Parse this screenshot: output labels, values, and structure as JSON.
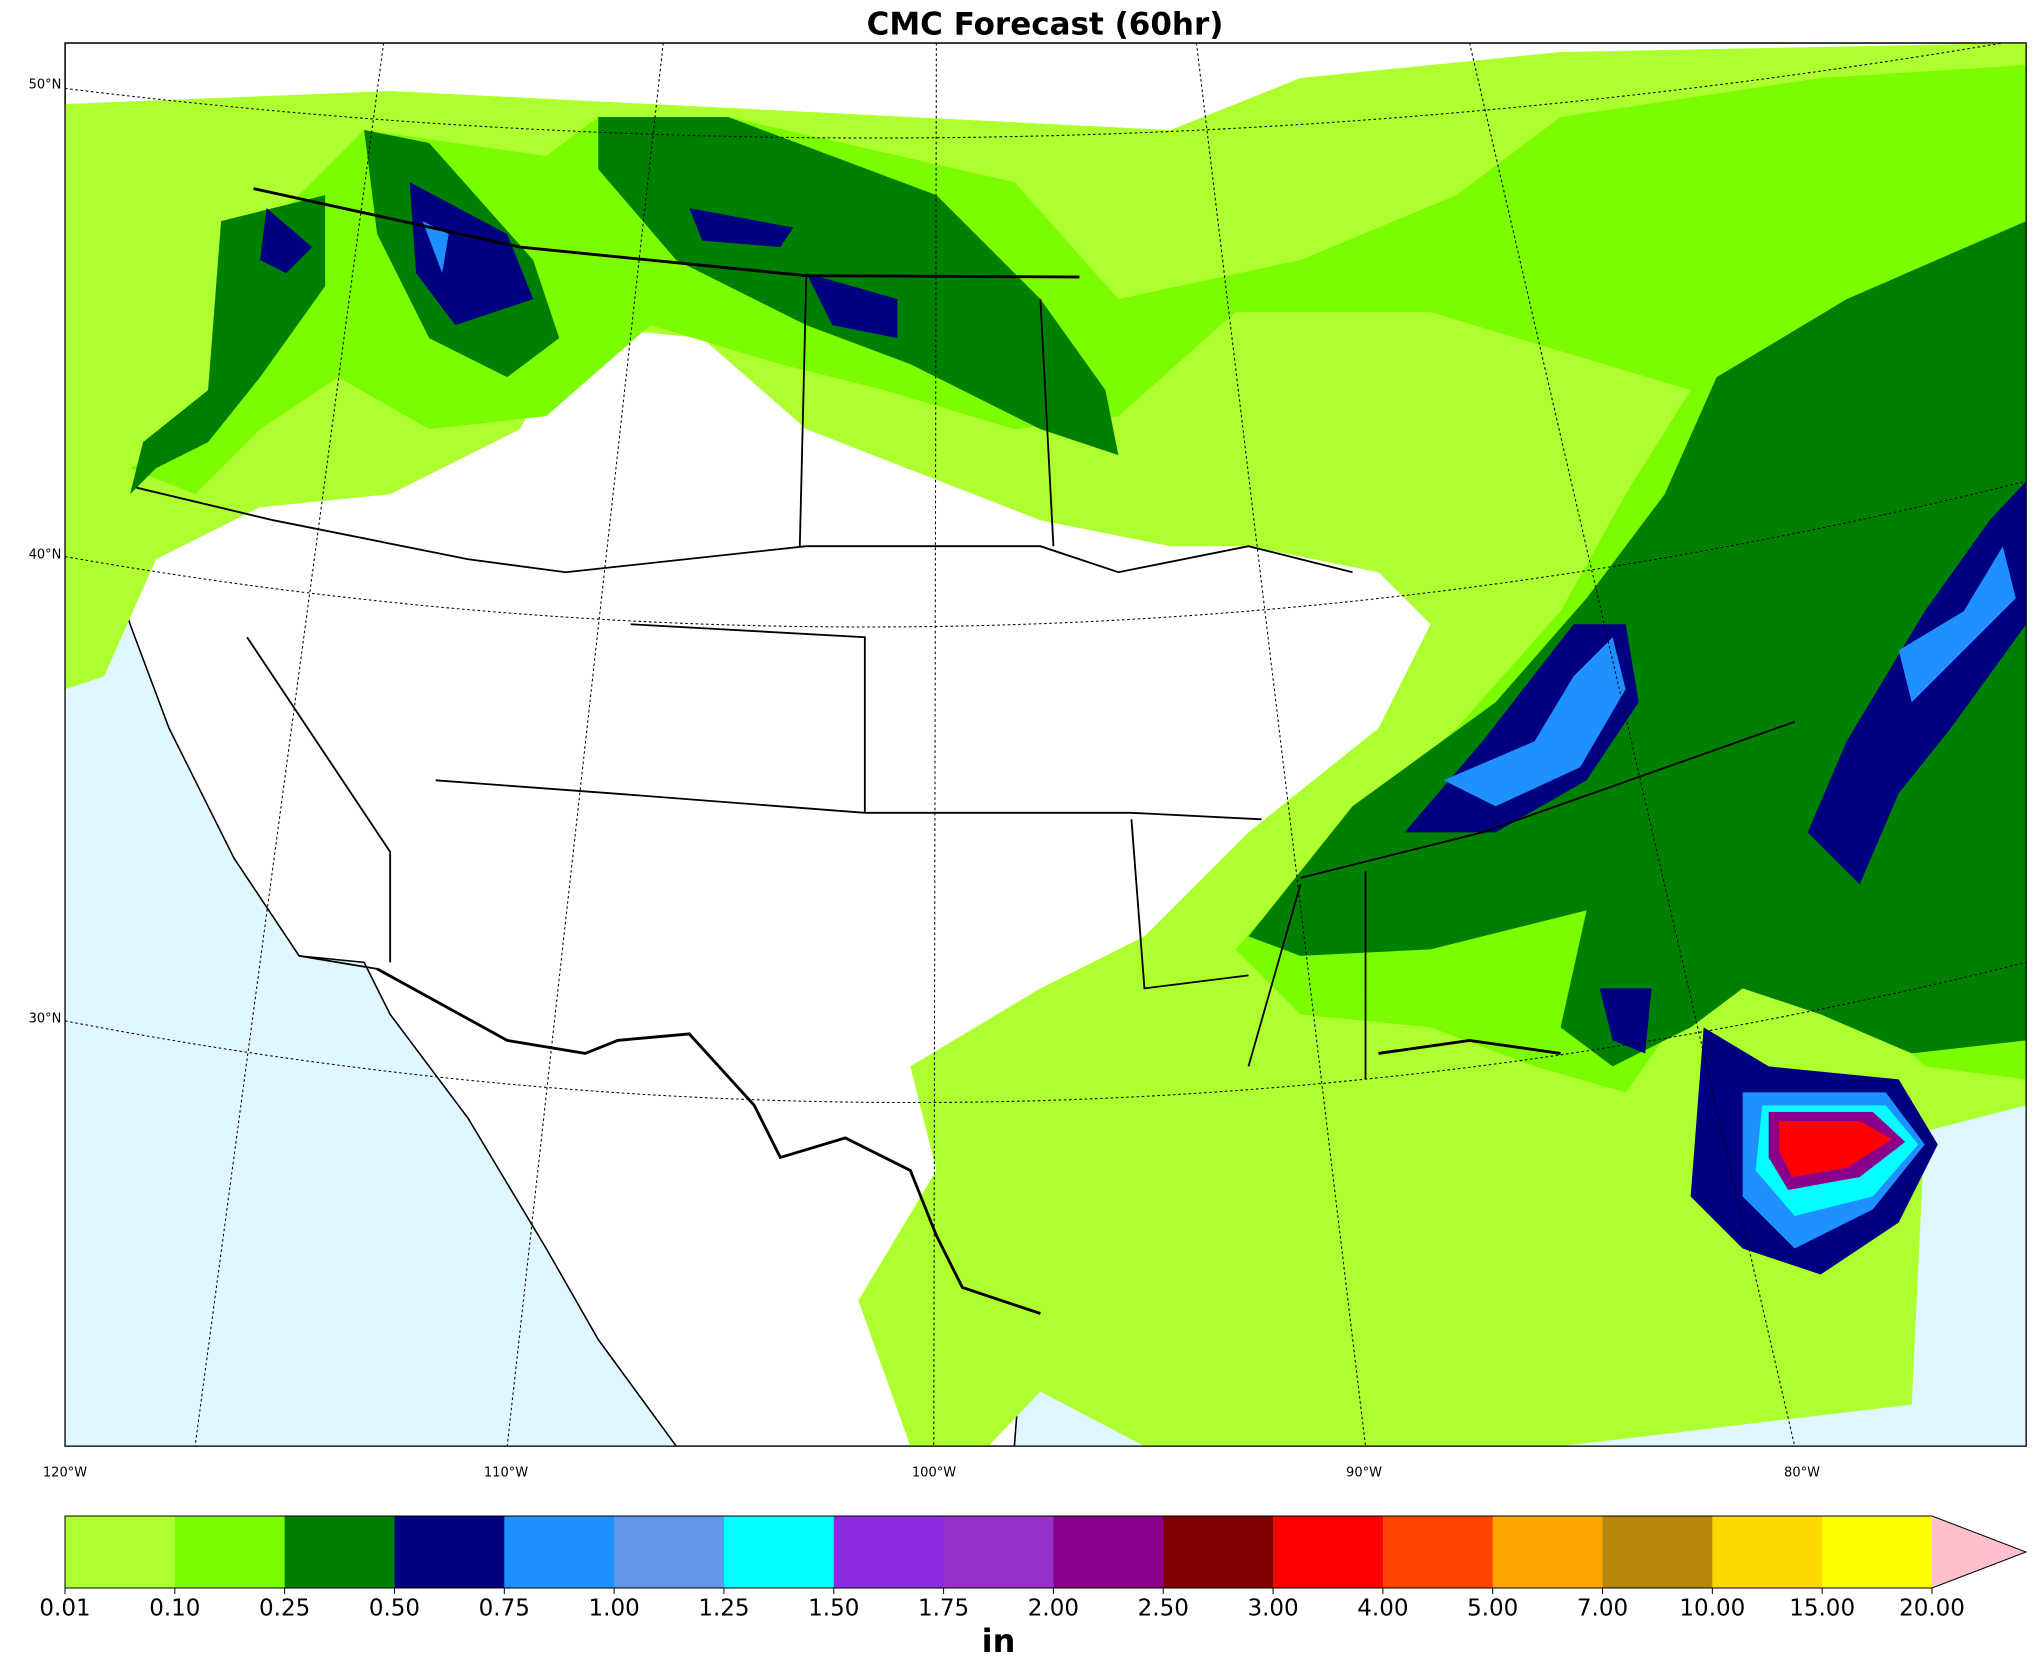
{
  "title": "CMC Forecast (60hr)",
  "lat_labels": [
    "50°N",
    "40°N",
    "30°N"
  ],
  "lon_labels": [
    "120°W",
    "110°W",
    "100°W",
    "90°W",
    "80°W"
  ],
  "colorbar": {
    "levels": [
      {
        "value": 0.01,
        "label": "0.01"
      },
      {
        "value": 0.1,
        "label": "0.10"
      },
      {
        "value": 0.25,
        "label": "0.25"
      },
      {
        "value": 0.5,
        "label": "0.50"
      },
      {
        "value": 0.75,
        "label": "0.75"
      },
      {
        "value": 1,
        "label": "1.00"
      },
      {
        "value": 1.25,
        "label": "1.25"
      },
      {
        "value": 1.5,
        "label": "1.50"
      },
      {
        "value": 1.75,
        "label": "1.75"
      },
      {
        "value": 2,
        "label": "2.00"
      },
      {
        "value": 2.5,
        "label": "2.50"
      },
      {
        "value": 3,
        "label": "3.00"
      },
      {
        "value": 4,
        "label": "4.00"
      },
      {
        "value": 5,
        "label": "5.00"
      },
      {
        "value": 7,
        "label": "7.00"
      },
      {
        "value": 10,
        "label": "10.00"
      },
      {
        "value": 15,
        "label": "15.00"
      },
      {
        "value": 20,
        "label": "20.00"
      }
    ],
    "colors": [
      "#adff2f",
      "#7cfc00",
      "#008000",
      "#000080",
      "#1e90ff",
      "#6495ed",
      "#00ffff",
      "#8a2be2",
      "#9932cc",
      "#8b008b",
      "#800000",
      "#ff0000",
      "#ff4500",
      "#ffa500",
      "#b8860b",
      "#ffd700",
      "#ffff00",
      "#ffc0cb"
    ],
    "unit": "in"
  }
}
